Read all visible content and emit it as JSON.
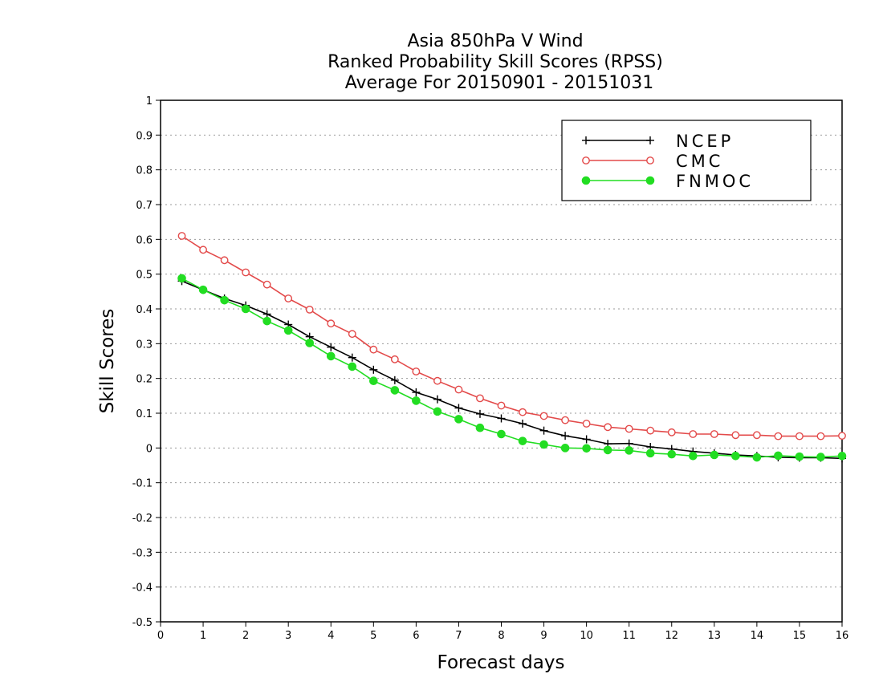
{
  "chart_data": {
    "type": "line",
    "title_lines": [
      "Asia 850hPa V Wind",
      "Ranked Probability Skill Scores (RPSS)",
      "Average For 20150901 - 20151031"
    ],
    "xlabel": "Forecast days",
    "ylabel": "Skill Scores",
    "xlim": [
      0,
      16
    ],
    "ylim": [
      -0.5,
      1
    ],
    "x_ticks": [
      "0",
      "1",
      "2",
      "3",
      "4",
      "5",
      "6",
      "7",
      "8",
      "9",
      "10",
      "11",
      "12",
      "13",
      "14",
      "15",
      "16"
    ],
    "y_ticks": [
      "-0.5",
      "-0.4",
      "-0.3",
      "-0.2",
      "-0.1",
      "0",
      "0.1",
      "0.2",
      "0.3",
      "0.4",
      "0.5",
      "0.6",
      "0.7",
      "0.8",
      "0.9",
      "1"
    ],
    "grid": true,
    "legend_position": "top-right",
    "x": [
      0.5,
      1,
      1.5,
      2,
      2.5,
      3,
      3.5,
      4,
      4.5,
      5,
      5.5,
      6,
      6.5,
      7,
      7.5,
      8,
      8.5,
      9,
      9.5,
      10,
      10.5,
      11,
      11.5,
      12,
      12.5,
      13,
      13.5,
      14,
      14.5,
      15,
      15.5,
      16
    ],
    "series": [
      {
        "name": "NCEP",
        "color": "#000000",
        "marker": "plus",
        "values": [
          0.48,
          0.455,
          0.43,
          0.41,
          0.385,
          0.355,
          0.32,
          0.29,
          0.26,
          0.225,
          0.195,
          0.16,
          0.14,
          0.115,
          0.098,
          0.085,
          0.07,
          0.05,
          0.035,
          0.025,
          0.012,
          0.013,
          0.003,
          -0.003,
          -0.01,
          -0.015,
          -0.02,
          -0.023,
          -0.027,
          -0.028,
          -0.028,
          -0.03
        ]
      },
      {
        "name": "CMC",
        "color": "#e34a4a",
        "marker": "open-circle",
        "values": [
          0.61,
          0.57,
          0.54,
          0.505,
          0.47,
          0.43,
          0.398,
          0.358,
          0.328,
          0.283,
          0.255,
          0.22,
          0.193,
          0.168,
          0.143,
          0.122,
          0.103,
          0.092,
          0.08,
          0.07,
          0.06,
          0.055,
          0.05,
          0.045,
          0.04,
          0.04,
          0.037,
          0.037,
          0.034,
          0.034,
          0.034,
          0.035
        ]
      },
      {
        "name": "FNMOC",
        "color": "#22dd22",
        "marker": "filled-circle",
        "values": [
          0.488,
          0.455,
          0.425,
          0.4,
          0.365,
          0.338,
          0.302,
          0.264,
          0.234,
          0.193,
          0.166,
          0.136,
          0.105,
          0.083,
          0.058,
          0.04,
          0.02,
          0.01,
          0.0,
          -0.001,
          -0.006,
          -0.007,
          -0.015,
          -0.018,
          -0.023,
          -0.02,
          -0.023,
          -0.027,
          -0.022,
          -0.025,
          -0.026,
          -0.023
        ]
      }
    ]
  }
}
